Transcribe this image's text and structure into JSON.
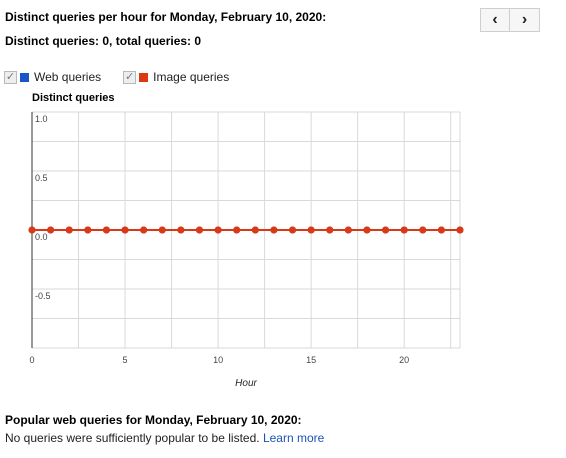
{
  "header": {
    "title": "Distinct queries per hour for Monday, February 10, 2020:",
    "subtitle": "Distinct queries: 0, total queries: 0",
    "prev_label": "‹",
    "next_label": "›"
  },
  "legend": {
    "web_label": "Web queries",
    "image_label": "Image queries"
  },
  "colors": {
    "web": "#1a55c8",
    "image": "#dc3912",
    "grid": "#d9d9d9"
  },
  "chart_data": {
    "type": "line",
    "ylabel": "Distinct queries",
    "xlabel": "Hour",
    "xlim": [
      0,
      23
    ],
    "ylim": [
      -1,
      1
    ],
    "xticks": [
      0,
      5,
      10,
      15,
      20
    ],
    "yticks": [
      {
        "value": 1,
        "label": "1.0"
      },
      {
        "value": 0.5,
        "label": "0.5"
      },
      {
        "value": 0,
        "label": "0.0"
      },
      {
        "value": -0.5,
        "label": "-0.5"
      }
    ],
    "grid": true,
    "x": [
      0,
      1,
      2,
      3,
      4,
      5,
      6,
      7,
      8,
      9,
      10,
      11,
      12,
      13,
      14,
      15,
      16,
      17,
      18,
      19,
      20,
      21,
      22,
      23
    ],
    "series": [
      {
        "name": "Web queries",
        "values": [
          0,
          0,
          0,
          0,
          0,
          0,
          0,
          0,
          0,
          0,
          0,
          0,
          0,
          0,
          0,
          0,
          0,
          0,
          0,
          0,
          0,
          0,
          0,
          0
        ]
      },
      {
        "name": "Image queries",
        "values": [
          0,
          0,
          0,
          0,
          0,
          0,
          0,
          0,
          0,
          0,
          0,
          0,
          0,
          0,
          0,
          0,
          0,
          0,
          0,
          0,
          0,
          0,
          0,
          0
        ]
      }
    ]
  },
  "popular": {
    "title": "Popular web queries for Monday, February 10, 2020:",
    "text": "No queries were sufficiently popular to be listed.",
    "link": "Learn more"
  }
}
